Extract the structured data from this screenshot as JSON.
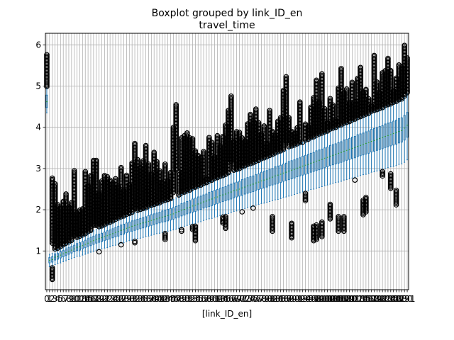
{
  "chart_data": {
    "type": "boxplot",
    "title": "Boxplot grouped by link_ID_en",
    "subtitle": "travel_time",
    "xlabel": "[link_ID_en]",
    "ylabel": "",
    "ylim": [
      0.06,
      6.28
    ],
    "yticks": [
      1,
      2,
      3,
      4,
      5,
      6
    ],
    "grid": true,
    "legend": "none",
    "colors": {
      "box": "#1f77b4",
      "median": "#2ca02c",
      "flier": "#000000",
      "grid": "#b0b0b0",
      "axes": "#000000"
    },
    "categories": [
      "0",
      "1",
      "2",
      "3",
      "4",
      "5",
      "6",
      "7",
      "8",
      "9",
      "10",
      "11",
      "12",
      "13",
      "14",
      "15",
      "16",
      "17",
      "18",
      "19",
      "20",
      "21",
      "22",
      "23",
      "24",
      "25",
      "26",
      "27",
      "28",
      "29",
      "30",
      "31",
      "32",
      "33",
      "34",
      "35",
      "36",
      "37",
      "38",
      "39",
      "40",
      "41",
      "42",
      "43",
      "44",
      "45",
      "46",
      "47",
      "48",
      "49",
      "50",
      "51",
      "52",
      "53",
      "54",
      "55",
      "56",
      "57",
      "58",
      "59",
      "60",
      "61",
      "62",
      "63",
      "64",
      "65",
      "66",
      "67",
      "68",
      "69",
      "70",
      "71",
      "72",
      "73",
      "74",
      "75",
      "76",
      "77",
      "78",
      "79",
      "80",
      "81",
      "82",
      "83",
      "84",
      "85",
      "86",
      "87",
      "88",
      "89",
      "90",
      "91",
      "92",
      "93",
      "94",
      "95",
      "96",
      "97",
      "98",
      "99",
      "100",
      "101",
      "102",
      "103",
      "104",
      "105",
      "106",
      "107",
      "108",
      "109",
      "110",
      "111",
      "112",
      "113",
      "114",
      "115",
      "116",
      "117",
      "118",
      "119",
      "120",
      "121",
      "122",
      "123",
      "124",
      "125",
      "126",
      "127",
      "128",
      "129",
      "130",
      "131"
    ],
    "medians": [
      4.62,
      0.77,
      0.79,
      0.85,
      0.86,
      0.9,
      0.93,
      0.96,
      0.99,
      1.02,
      1.05,
      1.09,
      1.1,
      1.13,
      1.16,
      1.19,
      1.22,
      1.25,
      1.28,
      1.3,
      1.32,
      1.35,
      1.37,
      1.39,
      1.42,
      1.45,
      1.47,
      1.5,
      1.52,
      1.55,
      1.57,
      1.6,
      1.62,
      1.64,
      1.66,
      1.68,
      1.7,
      1.72,
      1.74,
      1.76,
      1.78,
      1.8,
      1.82,
      1.84,
      1.86,
      1.88,
      1.9,
      1.93,
      1.96,
      1.99,
      2.01,
      2.04,
      2.06,
      2.09,
      2.11,
      2.14,
      2.16,
      2.19,
      2.21,
      2.24,
      2.26,
      2.29,
      2.31,
      2.34,
      2.36,
      2.38,
      2.41,
      2.43,
      2.46,
      2.48,
      2.5,
      2.53,
      2.55,
      2.58,
      2.6,
      2.62,
      2.65,
      2.67,
      2.7,
      2.72,
      2.74,
      2.77,
      2.79,
      2.82,
      2.84,
      2.86,
      2.89,
      2.91,
      2.94,
      2.96,
      2.98,
      3.01,
      3.03,
      3.06,
      3.08,
      3.1,
      3.13,
      3.15,
      3.18,
      3.2,
      3.22,
      3.25,
      3.27,
      3.3,
      3.32,
      3.34,
      3.37,
      3.39,
      3.42,
      3.44,
      3.46,
      3.49,
      3.51,
      3.54,
      3.56,
      3.58,
      3.61,
      3.63,
      3.66,
      3.68,
      3.7,
      3.73,
      3.75,
      3.78,
      3.8,
      3.82,
      3.85,
      3.87,
      3.9,
      3.92,
      3.98,
      4.05
    ],
    "q1": [
      4.48,
      0.71,
      0.73,
      0.78,
      0.8,
      0.83,
      0.86,
      0.89,
      0.92,
      0.95,
      0.98,
      1.01,
      1.02,
      1.05,
      1.08,
      1.11,
      1.13,
      1.16,
      1.19,
      1.21,
      1.23,
      1.25,
      1.27,
      1.29,
      1.32,
      1.34,
      1.36,
      1.39,
      1.41,
      1.44,
      1.46,
      1.48,
      1.5,
      1.52,
      1.54,
      1.56,
      1.58,
      1.6,
      1.62,
      1.64,
      1.66,
      1.68,
      1.7,
      1.71,
      1.73,
      1.75,
      1.77,
      1.8,
      1.82,
      1.85,
      1.87,
      1.9,
      1.92,
      1.94,
      1.96,
      1.99,
      2.01,
      2.04,
      2.06,
      2.08,
      2.1,
      2.13,
      2.15,
      2.18,
      2.2,
      2.22,
      2.24,
      2.26,
      2.29,
      2.31,
      2.33,
      2.35,
      2.38,
      2.4,
      2.42,
      2.44,
      2.47,
      2.49,
      2.51,
      2.53,
      2.55,
      2.58,
      2.6,
      2.62,
      2.64,
      2.66,
      2.69,
      2.71,
      2.73,
      2.75,
      2.77,
      2.8,
      2.82,
      2.84,
      2.86,
      2.88,
      2.91,
      2.93,
      2.95,
      2.97,
      2.99,
      3.02,
      3.04,
      3.07,
      3.09,
      3.11,
      3.13,
      3.15,
      3.18,
      3.2,
      3.22,
      3.24,
      3.26,
      3.29,
      3.31,
      3.33,
      3.35,
      3.37,
      3.4,
      3.42,
      3.44,
      3.46,
      3.48,
      3.51,
      3.53,
      3.55,
      3.57,
      3.59,
      3.62,
      3.64,
      3.69,
      3.76
    ],
    "q3": [
      4.78,
      0.84,
      0.86,
      0.93,
      0.94,
      0.98,
      1.01,
      1.05,
      1.08,
      1.11,
      1.14,
      1.18,
      1.2,
      1.23,
      1.26,
      1.3,
      1.33,
      1.36,
      1.39,
      1.41,
      1.43,
      1.46,
      1.49,
      1.51,
      1.54,
      1.57,
      1.6,
      1.63,
      1.65,
      1.68,
      1.7,
      1.73,
      1.75,
      1.77,
      1.79,
      1.81,
      1.83,
      1.86,
      1.88,
      1.9,
      1.92,
      1.94,
      1.97,
      1.99,
      2.01,
      2.03,
      2.05,
      2.08,
      2.11,
      2.15,
      2.17,
      2.2,
      2.22,
      2.26,
      2.28,
      2.31,
      2.33,
      2.36,
      2.38,
      2.42,
      2.44,
      2.47,
      2.49,
      2.52,
      2.54,
      2.56,
      2.6,
      2.62,
      2.65,
      2.67,
      2.69,
      2.73,
      2.75,
      2.78,
      2.8,
      2.82,
      2.85,
      2.87,
      2.91,
      2.93,
      2.95,
      2.98,
      3.0,
      3.04,
      3.06,
      3.08,
      3.11,
      3.13,
      3.17,
      3.19,
      3.21,
      3.24,
      3.26,
      3.3,
      3.32,
      3.34,
      3.37,
      3.39,
      3.43,
      3.45,
      3.47,
      3.5,
      3.52,
      3.56,
      3.58,
      3.6,
      3.63,
      3.65,
      3.69,
      3.71,
      3.73,
      3.76,
      3.78,
      3.82,
      3.84,
      3.86,
      3.89,
      3.91,
      3.95,
      3.97,
      3.99,
      4.02,
      4.04,
      4.08,
      4.1,
      4.12,
      4.15,
      4.17,
      4.21,
      4.23,
      4.29,
      4.36
    ],
    "whisker_low": [
      4.35,
      0.62,
      0.63,
      0.67,
      0.69,
      0.71,
      0.74,
      0.76,
      0.79,
      0.81,
      0.84,
      0.87,
      0.87,
      0.9,
      0.92,
      0.95,
      0.97,
      0.99,
      1.02,
      1.03,
      1.05,
      1.07,
      1.08,
      1.1,
      1.13,
      1.14,
      1.16,
      1.19,
      1.2,
      1.23,
      1.25,
      1.26,
      1.28,
      1.3,
      1.31,
      1.33,
      1.35,
      1.36,
      1.38,
      1.4,
      1.42,
      1.43,
      1.45,
      1.46,
      1.48,
      1.49,
      1.51,
      1.53,
      1.55,
      1.58,
      1.6,
      1.62,
      1.64,
      1.66,
      1.67,
      1.7,
      1.71,
      1.74,
      1.76,
      1.78,
      1.79,
      1.82,
      1.83,
      1.86,
      1.88,
      1.9,
      1.91,
      1.93,
      1.96,
      1.97,
      1.99,
      2.01,
      2.03,
      2.05,
      2.07,
      2.08,
      2.11,
      2.13,
      2.15,
      2.16,
      2.18,
      2.2,
      2.22,
      2.24,
      2.25,
      2.27,
      2.3,
      2.31,
      2.33,
      2.35,
      2.37,
      2.39,
      2.41,
      2.43,
      2.45,
      2.46,
      2.49,
      2.5,
      2.52,
      2.54,
      2.56,
      2.58,
      2.6,
      2.62,
      2.64,
      2.66,
      2.67,
      2.69,
      2.72,
      2.73,
      2.75,
      2.77,
      2.79,
      2.81,
      2.83,
      2.85,
      2.86,
      2.88,
      2.91,
      2.92,
      2.94,
      2.96,
      2.98,
      3.0,
      3.02,
      3.04,
      3.05,
      3.07,
      3.1,
      3.11,
      3.15,
      3.21
    ],
    "whisker_high": [
      4.95,
      0.92,
      0.94,
      1.01,
      1.03,
      1.07,
      1.11,
      1.15,
      1.18,
      1.22,
      1.25,
      1.29,
      1.32,
      1.35,
      1.38,
      1.43,
      1.46,
      1.49,
      1.52,
      1.55,
      1.57,
      1.6,
      1.64,
      1.66,
      1.69,
      1.73,
      1.76,
      1.79,
      1.81,
      1.85,
      1.87,
      1.9,
      1.92,
      1.95,
      1.97,
      1.99,
      2.01,
      2.05,
      2.07,
      2.09,
      2.11,
      2.13,
      2.17,
      2.19,
      2.21,
      2.23,
      2.25,
      2.29,
      2.32,
      2.37,
      2.39,
      2.42,
      2.44,
      2.49,
      2.51,
      2.54,
      2.56,
      2.6,
      2.62,
      2.66,
      2.68,
      2.72,
      2.74,
      2.77,
      2.79,
      2.82,
      2.86,
      2.88,
      2.92,
      2.94,
      2.96,
      3.0,
      3.03,
      3.06,
      3.08,
      3.1,
      3.14,
      3.16,
      3.2,
      3.22,
      3.25,
      3.28,
      3.3,
      3.34,
      3.37,
      3.39,
      3.42,
      3.44,
      3.49,
      3.51,
      3.53,
      3.56,
      3.59,
      3.63,
      3.65,
      3.67,
      3.71,
      3.73,
      3.77,
      3.8,
      3.82,
      3.85,
      3.87,
      3.92,
      3.94,
      3.96,
      4.0,
      4.02,
      4.06,
      4.08,
      4.1,
      4.14,
      4.16,
      4.2,
      4.22,
      4.25,
      4.28,
      4.3,
      4.35,
      4.37,
      4.39,
      4.42,
      4.44,
      4.49,
      4.51,
      4.53,
      4.57,
      4.59,
      4.63,
      4.65,
      4.72,
      4.8
    ],
    "flier_max": [
      5.76,
      0.92,
      2.79,
      2.65,
      2.12,
      2.08,
      2.22,
      2.39,
      2.08,
      2.18,
      2.97,
      1.95,
      2.02,
      2.05,
      2.95,
      2.62,
      2.85,
      3.22,
      3.22,
      2.42,
      2.72,
      2.86,
      2.82,
      2.72,
      2.65,
      2.77,
      2.58,
      3.05,
      2.5,
      2.86,
      2.62,
      3.15,
      3.63,
      3.22,
      3.04,
      3.2,
      3.58,
      3.12,
      2.9,
      3.42,
      3.18,
      2.95,
      2.68,
      3.11,
      2.72,
      2.92,
      4.02,
      4.57,
      2.95,
      3.75,
      3.82,
      3.89,
      3.74,
      3.72,
      3.45,
      3.32,
      3.28,
      3.41,
      2.78,
      3.75,
      3.63,
      3.29,
      3.82,
      3.55,
      3.78,
      4.08,
      4.42,
      4.78,
      3.66,
      3.92,
      3.88,
      3.75,
      3.68,
      4.1,
      4.32,
      4.18,
      4.45,
      4.12,
      3.85,
      4.05,
      3.62,
      4.42,
      3.92,
      3.82,
      4.15,
      4.25,
      4.92,
      5.25,
      4.25,
      3.92,
      3.86,
      4.0,
      4.62,
      3.64,
      4.08,
      4.05,
      4.5,
      4.72,
      5.15,
      4.62,
      5.32,
      4.45,
      4.12,
      4.72,
      4.55,
      4.18,
      4.95,
      5.45,
      4.86,
      4.95,
      4.62,
      5.1,
      4.62,
      5.2,
      5.45,
      4.88,
      4.92,
      4.72,
      4.55,
      5.74,
      5.12,
      4.85,
      5.35,
      5.4,
      5.7,
      5.4,
      4.92,
      5.2,
      5.52,
      5.46,
      6.0,
      5.68
    ],
    "flier_min": [
      5.48,
      0.7,
      0.31,
      1.29,
      1.45,
      1.05,
      1.32,
      1.58,
      1.42,
      1.38,
      1.48,
      1.65,
      1.92,
      1.55,
      1.72,
      2.0,
      1.92,
      1.78,
      2.02,
      0.98,
      1.98,
      1.82,
      1.88,
      2.18,
      1.95,
      1.98,
      2.05,
      1.15,
      2.15,
      2.02,
      2.22,
      2.15,
      1.2,
      2.28,
      2.25,
      2.18,
      2.28,
      2.3,
      2.32,
      2.38,
      2.45,
      2.52,
      2.42,
      1.28,
      2.55,
      2.45,
      2.62,
      2.58,
      2.68,
      1.48,
      2.72,
      2.65,
      2.75,
      1.52,
      1.25,
      2.78,
      2.75,
      2.85,
      2.85,
      2.92,
      2.72,
      2.98,
      3.02,
      2.95,
      1.68,
      1.55,
      3.08,
      3.12,
      2.18,
      3.15,
      2.05,
      1.95,
      3.22,
      3.28,
      3.2,
      2.05,
      3.32,
      3.35,
      2.2,
      3.42,
      3.45,
      3.48,
      1.48,
      3.52,
      3.58,
      3.55,
      3.62,
      3.68,
      2.55,
      1.32,
      3.72,
      3.78,
      3.82,
      3.35,
      2.22,
      3.85,
      3.88,
      1.25,
      1.28,
      3.95,
      1.35,
      3.98,
      4.02,
      1.78,
      4.05,
      4.08,
      1.48,
      4.12,
      1.48,
      4.18,
      4.22,
      4.28,
      2.72,
      4.32,
      4.38,
      1.88,
      1.95,
      4.45,
      3.0,
      4.52,
      4.58,
      4.62,
      2.82,
      3.02,
      4.68,
      2.52,
      4.75,
      2.12,
      4.82,
      4.88,
      5.52,
      4.88
    ]
  }
}
